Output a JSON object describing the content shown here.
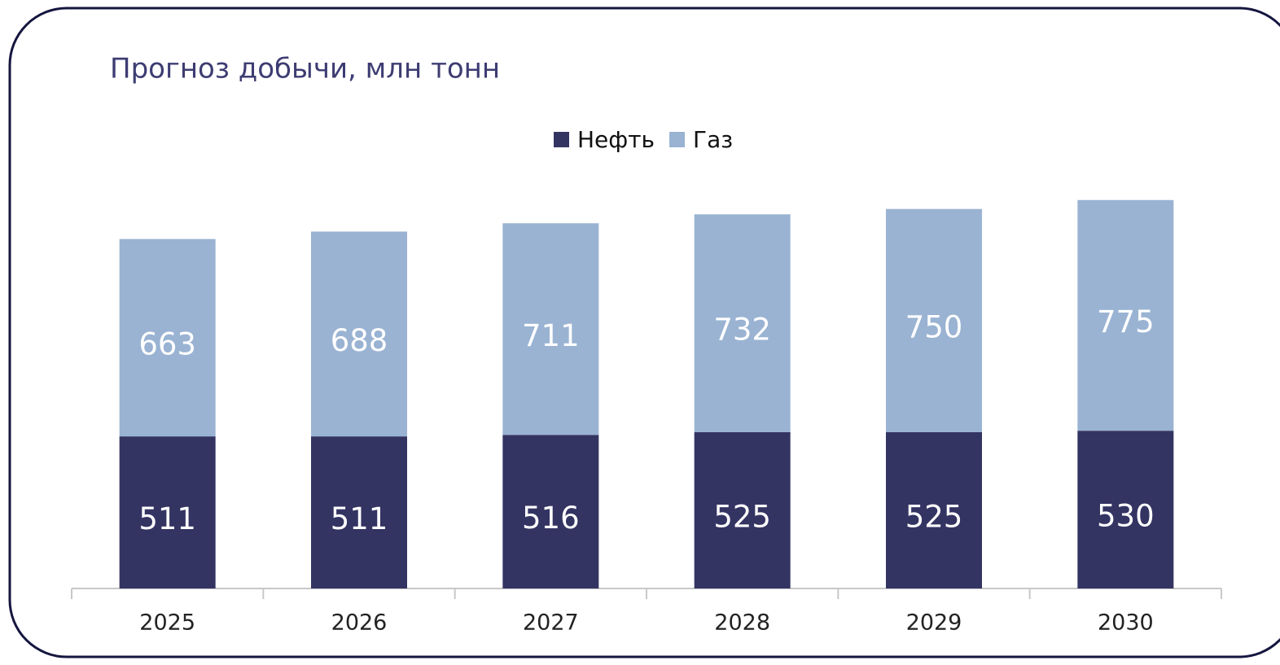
{
  "chart_data": {
    "type": "stacked_bar",
    "title": "Прогноз добычи, млн тонн",
    "categories": [
      "2025",
      "2026",
      "2027",
      "2028",
      "2029",
      "2030"
    ],
    "series": [
      {
        "name": "Нефть",
        "color": "#343463",
        "values": [
          511,
          511,
          516,
          525,
          525,
          530
        ]
      },
      {
        "name": "Газ",
        "color": "#9ab3d3",
        "values": [
          663,
          688,
          711,
          732,
          750,
          775
        ]
      }
    ],
    "ylim": [
      0,
      1400
    ],
    "legend": "top"
  }
}
